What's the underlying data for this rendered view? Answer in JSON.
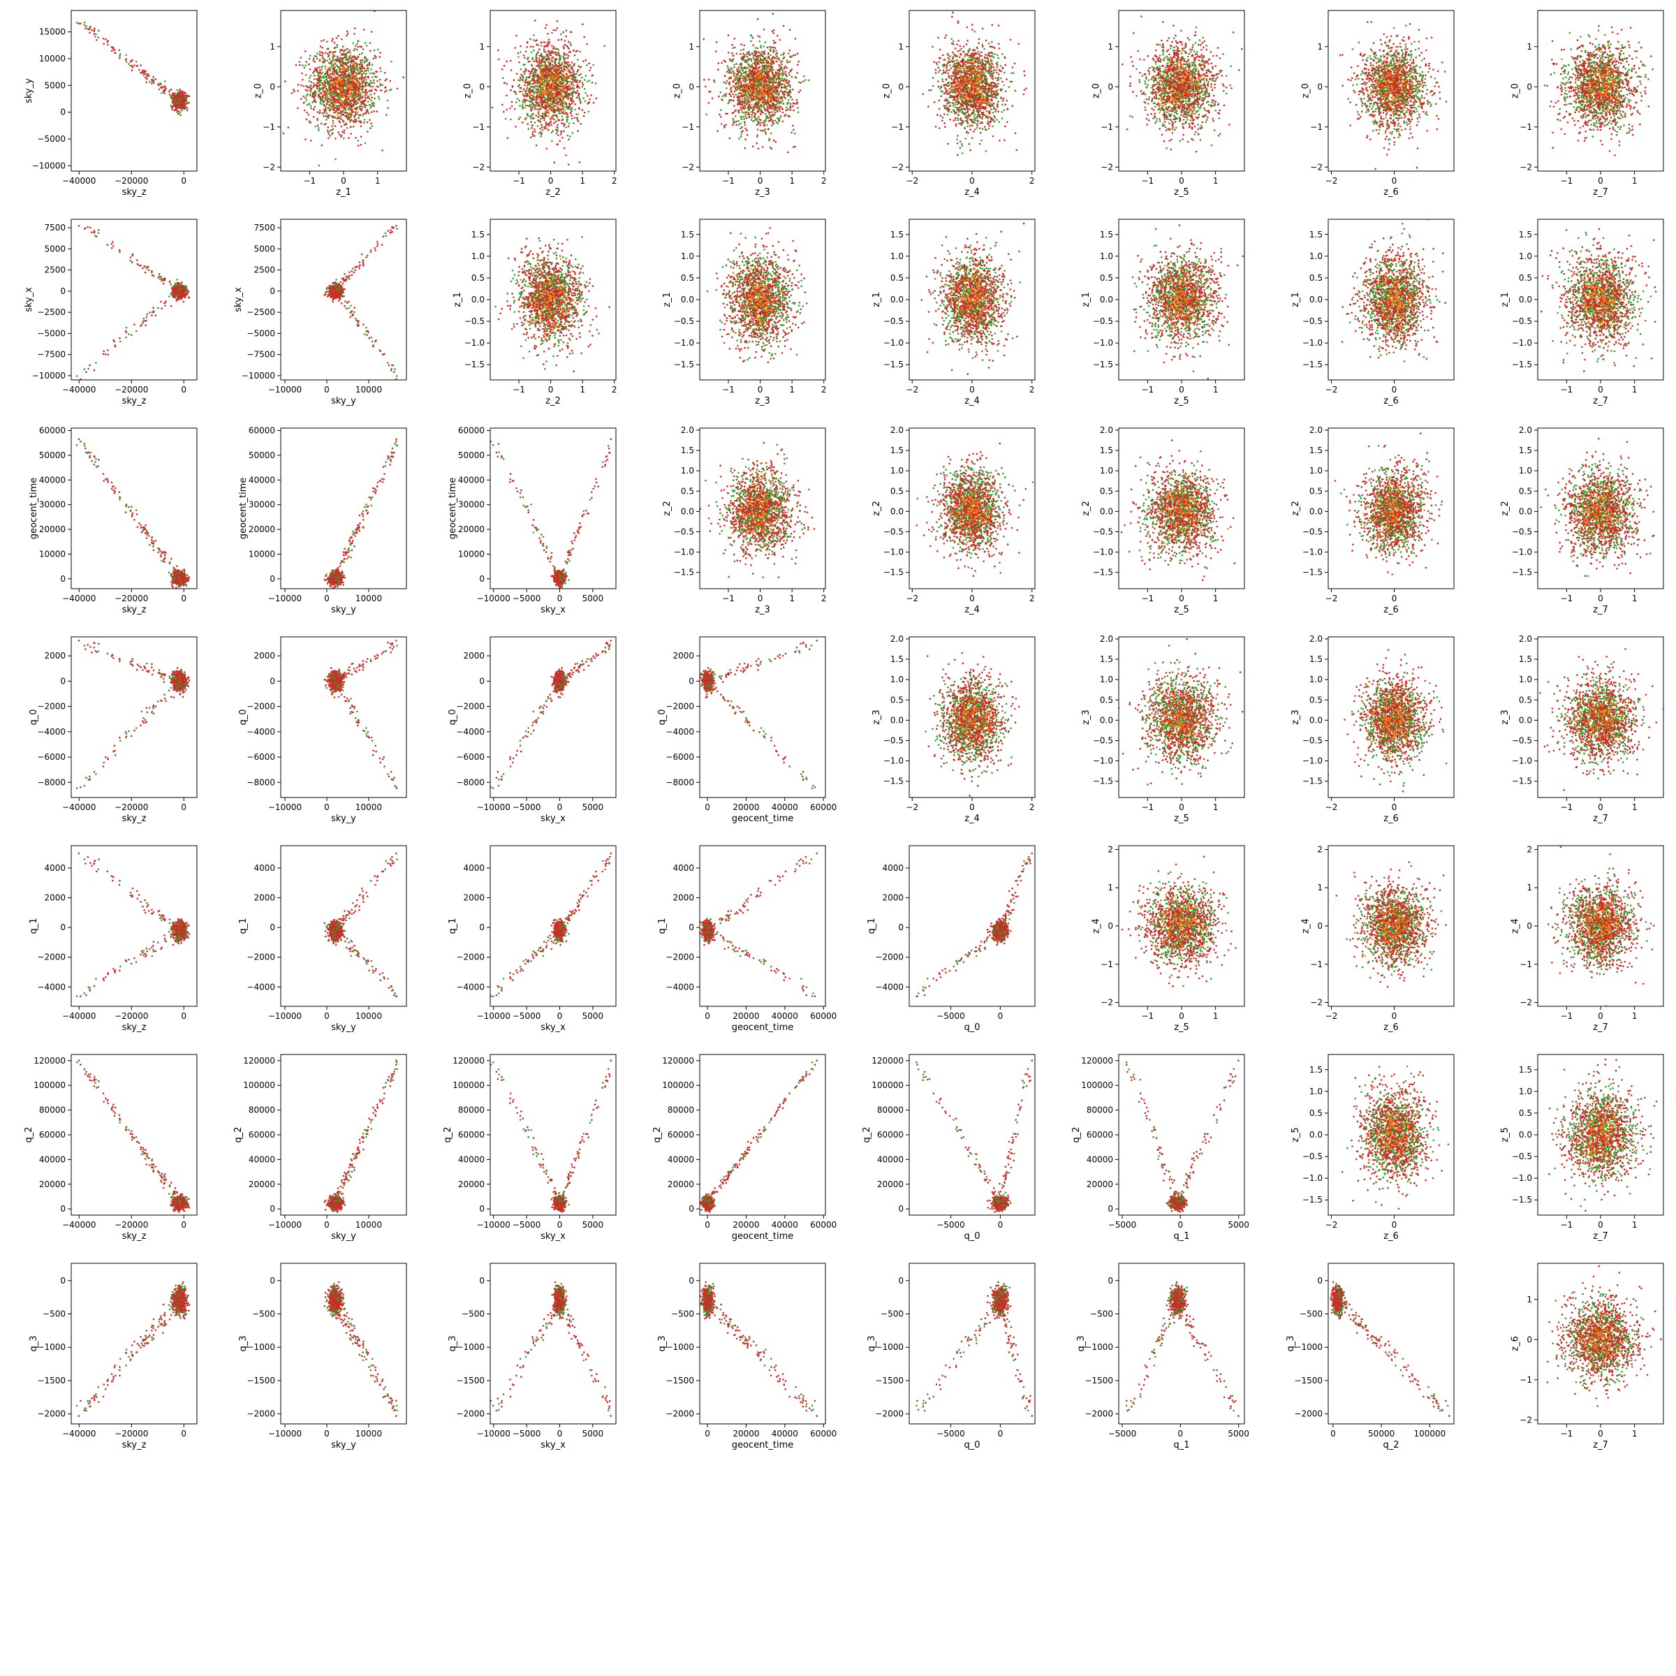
{
  "figure": {
    "layout": "corner-pair-grid",
    "note_grid": "8x8",
    "colors": {
      "sample_a": "#2ca02c",
      "sample_b": "#d62728",
      "sample_c": "#ff7f0e",
      "axes": "#000000",
      "background": "#ffffff"
    }
  },
  "chart_data": {
    "type": "scatter",
    "lower_triangle_variables": [
      "sky_z",
      "sky_y",
      "sky_x",
      "geocent_time",
      "q_0",
      "q_1",
      "q_2",
      "q_3"
    ],
    "upper_triangle_variables": [
      "z_0",
      "z_1",
      "z_2",
      "z_3",
      "z_4",
      "z_5",
      "z_6",
      "z_7"
    ],
    "series_colors": [
      "#2ca02c",
      "#d62728"
    ],
    "lower_axes": {
      "sky_z": {
        "label": "sky_z",
        "range": [
          -43000,
          5000
        ],
        "ticks": [
          -40000,
          -20000,
          0
        ],
        "tick_labels": [
          "−40000",
          "−20000",
          "0"
        ]
      },
      "sky_y": {
        "label": "sky_y",
        "range": [
          -11000,
          19000
        ],
        "ticks": [
          -10000,
          -5000,
          0,
          5000,
          10000,
          15000
        ],
        "tick_labels": [
          "−10000",
          "−5000",
          "0",
          "5000",
          "10000",
          "15000"
        ],
        "x_ticks": [
          -10000,
          0,
          10000
        ],
        "x_tick_labels": [
          "−10000",
          "0",
          "10000"
        ]
      },
      "sky_x": {
        "label": "sky_x",
        "range": [
          -10500,
          8500
        ],
        "ticks": [
          -10000,
          -7500,
          -5000,
          -2500,
          0,
          2500,
          5000,
          7500
        ],
        "tick_labels": [
          "−10000",
          "−7500",
          "−5000",
          "−2500",
          "0",
          "2500",
          "5000",
          "7500"
        ],
        "x_ticks": [
          -10000,
          -5000,
          0,
          5000
        ],
        "x_tick_labels": [
          "−10000",
          "−5000",
          "0",
          "5000"
        ]
      },
      "geocent_time": {
        "label": "geocent_time",
        "range": [
          -4000,
          61000
        ],
        "ticks": [
          0,
          10000,
          20000,
          30000,
          40000,
          50000,
          60000
        ],
        "tick_labels": [
          "0",
          "10000",
          "20000",
          "30000",
          "40000",
          "50000",
          "60000"
        ],
        "x_ticks": [
          0,
          20000,
          40000,
          60000
        ],
        "x_tick_labels": [
          "0",
          "20000",
          "40000",
          "60000"
        ]
      },
      "q_0": {
        "label": "q_0",
        "range": [
          -9200,
          3500
        ],
        "ticks": [
          -8000,
          -6000,
          -4000,
          -2000,
          0,
          2000
        ],
        "tick_labels": [
          "−8000",
          "−6000",
          "−4000",
          "−2000",
          "0",
          "2000"
        ],
        "x_ticks": [
          -5000,
          0
        ],
        "x_tick_labels": [
          "−5000",
          "0"
        ]
      },
      "q_1": {
        "label": "q_1",
        "range": [
          -5300,
          5500
        ],
        "ticks": [
          -4000,
          -2000,
          0,
          2000,
          4000
        ],
        "tick_labels": [
          "−4000",
          "−2000",
          "0",
          "2000",
          "4000"
        ],
        "x_ticks": [
          -5000,
          0,
          5000
        ],
        "x_tick_labels": [
          "−5000",
          "0",
          "5000"
        ]
      },
      "q_2": {
        "label": "q_2",
        "range": [
          -5000,
          125000
        ],
        "ticks": [
          0,
          20000,
          40000,
          60000,
          80000,
          100000,
          120000
        ],
        "tick_labels": [
          "0",
          "20000",
          "40000",
          "60000",
          "80000",
          "100000",
          "120000"
        ],
        "x_ticks": [
          0,
          50000,
          100000
        ],
        "x_tick_labels": [
          "0",
          "50000",
          "100000"
        ]
      },
      "q_3": {
        "label": "q_3",
        "range": [
          -2150,
          260
        ],
        "ticks": [
          -2000,
          -1500,
          -1000,
          -500,
          0
        ],
        "tick_labels": [
          "−2000",
          "−1500",
          "−1000",
          "−500",
          "0"
        ]
      }
    },
    "upper_axes": {
      "z_0": {
        "label": "z_0",
        "range": [
          -2.1,
          1.9
        ],
        "ticks": [
          -2,
          -1,
          0,
          1
        ],
        "tick_labels": [
          "−2",
          "−1",
          "0",
          "1"
        ]
      },
      "z_1": {
        "label": "z_1",
        "range": [
          -1.85,
          1.85
        ],
        "ticks": [
          -1.5,
          -1,
          -0.5,
          0,
          0.5,
          1,
          1.5
        ],
        "tick_labels": [
          "−1.5",
          "−1.0",
          "−0.5",
          "0.0",
          "0.5",
          "1.0",
          "1.5"
        ],
        "x_ticks": [
          -1,
          0,
          1
        ],
        "x_tick_labels": [
          "−1",
          "0",
          "1"
        ]
      },
      "z_2": {
        "label": "z_2",
        "range": [
          -1.9,
          2.05
        ],
        "ticks": [
          -1.5,
          -1,
          -0.5,
          0,
          0.5,
          1,
          1.5,
          2
        ],
        "tick_labels": [
          "−1.5",
          "−1.0",
          "−0.5",
          "0.0",
          "0.5",
          "1.0",
          "1.5",
          "2.0"
        ],
        "x_ticks": [
          -1,
          0,
          1,
          2
        ],
        "x_tick_labels": [
          "−1",
          "0",
          "1",
          "2"
        ]
      },
      "z_3": {
        "label": "z_3",
        "range": [
          -1.9,
          2.05
        ],
        "ticks": [
          -1.5,
          -1,
          -0.5,
          0,
          0.5,
          1,
          1.5,
          2
        ],
        "tick_labels": [
          "−1.5",
          "−1.0",
          "−0.5",
          "0.0",
          "0.5",
          "1.0",
          "1.5",
          "2.0"
        ],
        "x_ticks": [
          -1,
          0,
          1,
          2
        ],
        "x_tick_labels": [
          "−1",
          "0",
          "1",
          "2"
        ]
      },
      "z_4": {
        "label": "z_4",
        "range": [
          -2.1,
          2.1
        ],
        "ticks": [
          -2,
          -1,
          0,
          1,
          2
        ],
        "tick_labels": [
          "−2",
          "−1",
          "0",
          "1",
          "2"
        ],
        "x_ticks": [
          -2,
          0,
          2
        ],
        "x_tick_labels": [
          "−2",
          "0",
          "2"
        ]
      },
      "z_5": {
        "label": "z_5",
        "range": [
          -1.85,
          1.85
        ],
        "ticks": [
          -1.5,
          -1,
          -0.5,
          0,
          0.5,
          1,
          1.5
        ],
        "tick_labels": [
          "−1.5",
          "−1.0",
          "−0.5",
          "0.0",
          "0.5",
          "1.0",
          "1.5"
        ],
        "x_ticks": [
          -1,
          0,
          1
        ],
        "x_tick_labels": [
          "−1",
          "0",
          "1"
        ]
      },
      "z_6": {
        "label": "z_6",
        "range": [
          -2.1,
          1.9
        ],
        "ticks": [
          -2,
          -1,
          0,
          1
        ],
        "tick_labels": [
          "−2",
          "−1",
          "0",
          "1"
        ],
        "x_ticks": [
          -2,
          0
        ],
        "x_tick_labels": [
          "−2",
          "0"
        ]
      },
      "z_7": {
        "label": "z_7",
        "range": [
          -1.85,
          1.85
        ],
        "ticks": [
          -1,
          0,
          1
        ],
        "tick_labels": [
          "−1",
          "0",
          "1"
        ]
      }
    },
    "upper_row_ytick_overrides": {
      "z_4": {
        "ticks": [
          -2,
          -1,
          0,
          1,
          2
        ],
        "tick_labels": [
          "−2",
          "−1",
          "0",
          "1",
          "2"
        ]
      }
    },
    "pairs_lower": [
      {
        "x": "sky_z",
        "y": "sky_y"
      },
      {
        "x": "sky_z",
        "y": "sky_x"
      },
      {
        "x": "sky_y",
        "y": "sky_x"
      },
      {
        "x": "sky_z",
        "y": "geocent_time"
      },
      {
        "x": "sky_y",
        "y": "geocent_time"
      },
      {
        "x": "sky_x",
        "y": "geocent_time"
      },
      {
        "x": "sky_z",
        "y": "q_0"
      },
      {
        "x": "sky_y",
        "y": "q_0"
      },
      {
        "x": "sky_x",
        "y": "q_0"
      },
      {
        "x": "geocent_time",
        "y": "q_0"
      },
      {
        "x": "sky_z",
        "y": "q_1"
      },
      {
        "x": "sky_y",
        "y": "q_1"
      },
      {
        "x": "sky_x",
        "y": "q_1"
      },
      {
        "x": "geocent_time",
        "y": "q_1"
      },
      {
        "x": "q_0",
        "y": "q_1"
      },
      {
        "x": "sky_z",
        "y": "q_2"
      },
      {
        "x": "sky_y",
        "y": "q_2"
      },
      {
        "x": "sky_x",
        "y": "q_2"
      },
      {
        "x": "geocent_time",
        "y": "q_2"
      },
      {
        "x": "q_0",
        "y": "q_2"
      },
      {
        "x": "q_1",
        "y": "q_2"
      },
      {
        "x": "sky_z",
        "y": "q_3"
      },
      {
        "x": "sky_y",
        "y": "q_3"
      },
      {
        "x": "sky_x",
        "y": "q_3"
      },
      {
        "x": "geocent_time",
        "y": "q_3"
      },
      {
        "x": "q_0",
        "y": "q_3"
      },
      {
        "x": "q_1",
        "y": "q_3"
      },
      {
        "x": "q_2",
        "y": "q_3"
      }
    ],
    "pairs_upper": [
      {
        "x": "z_1",
        "y": "z_0"
      },
      {
        "x": "z_2",
        "y": "z_0"
      },
      {
        "x": "z_3",
        "y": "z_0"
      },
      {
        "x": "z_4",
        "y": "z_0"
      },
      {
        "x": "z_5",
        "y": "z_0"
      },
      {
        "x": "z_6",
        "y": "z_0"
      },
      {
        "x": "z_7",
        "y": "z_0"
      },
      {
        "x": "z_2",
        "y": "z_1"
      },
      {
        "x": "z_3",
        "y": "z_1"
      },
      {
        "x": "z_4",
        "y": "z_1"
      },
      {
        "x": "z_5",
        "y": "z_1"
      },
      {
        "x": "z_6",
        "y": "z_1"
      },
      {
        "x": "z_7",
        "y": "z_1"
      },
      {
        "x": "z_3",
        "y": "z_2"
      },
      {
        "x": "z_4",
        "y": "z_2"
      },
      {
        "x": "z_5",
        "y": "z_2"
      },
      {
        "x": "z_6",
        "y": "z_2"
      },
      {
        "x": "z_7",
        "y": "z_2"
      },
      {
        "x": "z_4",
        "y": "z_3"
      },
      {
        "x": "z_5",
        "y": "z_3"
      },
      {
        "x": "z_6",
        "y": "z_3"
      },
      {
        "x": "z_7",
        "y": "z_3"
      },
      {
        "x": "z_5",
        "y": "z_4"
      },
      {
        "x": "z_6",
        "y": "z_4"
      },
      {
        "x": "z_7",
        "y": "z_4"
      },
      {
        "x": "z_6",
        "y": "z_5"
      },
      {
        "x": "z_7",
        "y": "z_5"
      },
      {
        "x": "z_7",
        "y": "z_6"
      }
    ],
    "upper_distribution": {
      "shape": "isotropic gaussian",
      "center": [
        0,
        0
      ],
      "std": 0.55,
      "points_per_series": 800
    },
    "lower_distribution": {
      "sky_z": {
        "center": -1500,
        "spread": 2500,
        "tail": [
          -40000,
          0
        ]
      },
      "sky_y": {
        "center": 2000,
        "spread": 1500,
        "tail": [
          0,
          17000
        ]
      },
      "sky_x": {
        "center": 0,
        "spread": 800,
        "tail": [
          -10000,
          8000
        ]
      },
      "geocent_time": {
        "center": 0,
        "spread": 2500,
        "tail": [
          0,
          56000
        ]
      },
      "q_0": {
        "center": 0,
        "spread": 700,
        "tail": [
          -8500,
          3000
        ]
      },
      "q_1": {
        "center": -200,
        "spread": 600,
        "tail": [
          -4500,
          5000
        ]
      },
      "q_2": {
        "center": 5000,
        "spread": 5000,
        "tail": [
          0,
          120000
        ]
      },
      "q_3": {
        "center": -300,
        "spread": 200,
        "tail": [
          -2000,
          200
        ]
      }
    },
    "grid": false,
    "legend": "none"
  }
}
